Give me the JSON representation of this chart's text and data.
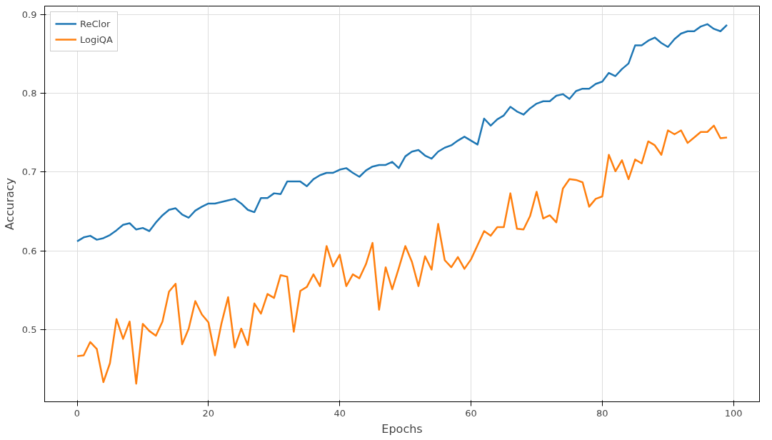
{
  "chart_data": {
    "type": "line",
    "xlabel": "Epochs",
    "ylabel": "Accuracy",
    "x": [
      0,
      1,
      2,
      3,
      4,
      5,
      6,
      7,
      8,
      9,
      10,
      11,
      12,
      13,
      14,
      15,
      16,
      17,
      18,
      19,
      20,
      21,
      22,
      23,
      24,
      25,
      26,
      27,
      28,
      29,
      30,
      31,
      32,
      33,
      34,
      35,
      36,
      37,
      38,
      39,
      40,
      41,
      42,
      43,
      44,
      45,
      46,
      47,
      48,
      49,
      50,
      51,
      52,
      53,
      54,
      55,
      56,
      57,
      58,
      59,
      60,
      61,
      62,
      63,
      64,
      65,
      66,
      67,
      68,
      69,
      70,
      71,
      72,
      73,
      74,
      75,
      76,
      77,
      78,
      79,
      80,
      81,
      82,
      83,
      84,
      85,
      86,
      87,
      88,
      89,
      90,
      91,
      92,
      93,
      94,
      95,
      96,
      97,
      98,
      99
    ],
    "series": [
      {
        "name": "ReClor",
        "color": "#1f77b4",
        "values": [
          0.612,
          0.617,
          0.619,
          0.614,
          0.616,
          0.62,
          0.626,
          0.633,
          0.635,
          0.627,
          0.629,
          0.625,
          0.636,
          0.645,
          0.652,
          0.654,
          0.646,
          0.642,
          0.651,
          0.656,
          0.66,
          0.66,
          0.662,
          0.664,
          0.666,
          0.66,
          0.652,
          0.649,
          0.667,
          0.667,
          0.673,
          0.672,
          0.688,
          0.688,
          0.688,
          0.682,
          0.691,
          0.696,
          0.699,
          0.699,
          0.703,
          0.705,
          0.699,
          0.694,
          0.702,
          0.707,
          0.709,
          0.709,
          0.713,
          0.705,
          0.72,
          0.726,
          0.728,
          0.721,
          0.717,
          0.726,
          0.731,
          0.734,
          0.74,
          0.745,
          0.74,
          0.735,
          0.768,
          0.759,
          0.767,
          0.772,
          0.783,
          0.777,
          0.773,
          0.781,
          0.787,
          0.79,
          0.79,
          0.797,
          0.799,
          0.793,
          0.803,
          0.806,
          0.806,
          0.812,
          0.815,
          0.826,
          0.822,
          0.831,
          0.838,
          0.861,
          0.861,
          0.867,
          0.871,
          0.864,
          0.859,
          0.869,
          0.876,
          0.879,
          0.879,
          0.885,
          0.888,
          0.882,
          0.879,
          0.887
        ]
      },
      {
        "name": "LogiQA",
        "color": "#ff7f0e",
        "values": [
          0.466,
          0.467,
          0.484,
          0.475,
          0.433,
          0.457,
          0.513,
          0.488,
          0.51,
          0.431,
          0.507,
          0.498,
          0.492,
          0.51,
          0.548,
          0.558,
          0.481,
          0.501,
          0.536,
          0.519,
          0.509,
          0.467,
          0.508,
          0.541,
          0.477,
          0.501,
          0.48,
          0.533,
          0.52,
          0.545,
          0.54,
          0.569,
          0.567,
          0.497,
          0.549,
          0.554,
          0.57,
          0.555,
          0.606,
          0.58,
          0.595,
          0.555,
          0.57,
          0.565,
          0.583,
          0.61,
          0.525,
          0.579,
          0.551,
          0.578,
          0.606,
          0.586,
          0.555,
          0.593,
          0.576,
          0.634,
          0.588,
          0.579,
          0.592,
          0.577,
          0.589,
          0.607,
          0.625,
          0.619,
          0.63,
          0.63,
          0.673,
          0.628,
          0.627,
          0.644,
          0.675,
          0.641,
          0.645,
          0.636,
          0.679,
          0.691,
          0.69,
          0.687,
          0.656,
          0.666,
          0.669,
          0.722,
          0.701,
          0.715,
          0.691,
          0.716,
          0.711,
          0.739,
          0.734,
          0.722,
          0.753,
          0.748,
          0.753,
          0.737,
          0.744,
          0.751,
          0.751,
          0.759,
          0.743,
          0.744
        ]
      }
    ],
    "xlim": [
      -4.95,
      103.95
    ],
    "ylim": [
      0.408,
      0.911
    ],
    "xticks": [
      0,
      20,
      40,
      60,
      80,
      100
    ],
    "yticks": [
      {
        "value": 0.5,
        "label": "0.5"
      },
      {
        "value": 0.6,
        "label": "0.6"
      },
      {
        "value": 0.7,
        "label": "0.7"
      },
      {
        "value": 0.8,
        "label": "0.8"
      },
      {
        "value": 0.9,
        "label": "0.9"
      }
    ],
    "grid": true,
    "legend": "top left",
    "marker": "none",
    "line_style": "solid"
  }
}
